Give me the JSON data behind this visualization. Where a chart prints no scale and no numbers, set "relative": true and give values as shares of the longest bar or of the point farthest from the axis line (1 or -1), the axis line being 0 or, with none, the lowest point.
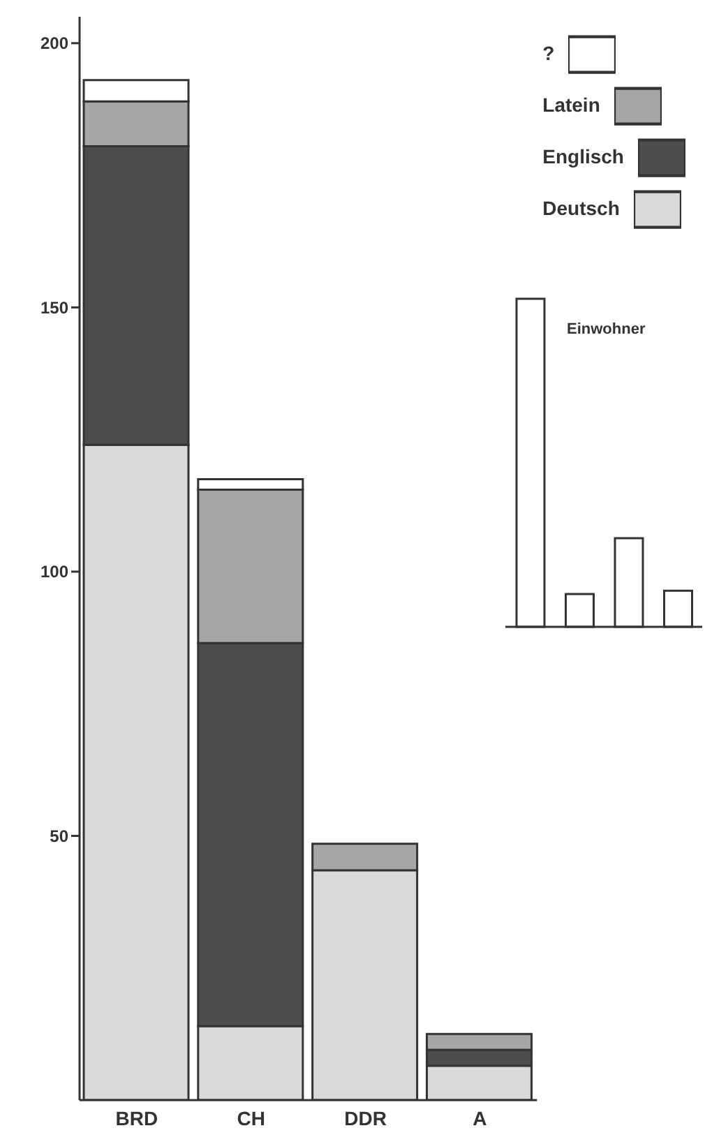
{
  "chart_data": [
    {
      "type": "bar",
      "stacked": true,
      "categories": [
        "BRD",
        "CH",
        "DDR",
        "A"
      ],
      "ylim": [
        0,
        205
      ],
      "yticks": [
        50,
        100,
        150,
        200
      ],
      "legend": "top right",
      "series": [
        {
          "name": "Deutsch",
          "color": "#d9d9d9",
          "values": [
            124,
            14,
            43.5,
            6.5
          ]
        },
        {
          "name": "Englisch",
          "color": "#4d4d4d",
          "values": [
            56.5,
            72.5,
            0,
            3
          ]
        },
        {
          "name": "Latein",
          "color": "#a6a6a6",
          "values": [
            8.5,
            29,
            5,
            3
          ]
        },
        {
          "name": "?",
          "color": "#ffffff",
          "values": [
            4,
            2,
            0,
            0
          ]
        }
      ]
    },
    {
      "type": "bar",
      "title": "Einwohner",
      "relative": true,
      "categories": [
        null,
        null,
        null,
        null
      ],
      "color": "#ffffff",
      "values": [
        1,
        0.1,
        0.27,
        0.11
      ]
    }
  ]
}
